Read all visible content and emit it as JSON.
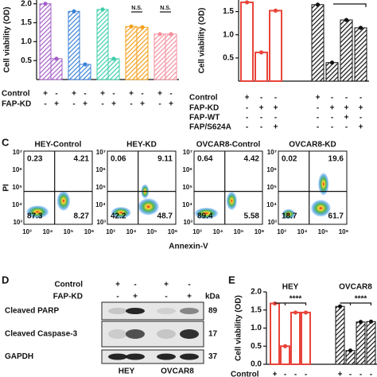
{
  "panels": [
    "C",
    "D",
    "E"
  ],
  "chart_data": [
    {
      "type": "bar",
      "y_label": "Cell viability (OD)",
      "ylim": [
        0,
        2.1
      ],
      "yticks": [
        0.5,
        {
          "value": 1,
          "label": "1.0"
        },
        1.5,
        {
          "value": 2,
          "label": "2.0"
        }
      ],
      "groups": [
        {
          "color": "#a45fc8",
          "hatch": true,
          "values": [
            2.0,
            0.55
          ]
        },
        {
          "color": "#3a82d8",
          "hatch": true,
          "values": [
            1.8,
            0.4
          ]
        },
        {
          "color": "#3fcfaa",
          "hatch": true,
          "values": [
            1.85,
            0.55
          ]
        },
        {
          "color": "#f5a01c",
          "hatch": true,
          "values": [
            1.4,
            1.38
          ]
        },
        {
          "color": "#f4909d",
          "hatch": true,
          "values": [
            1.2,
            1.2
          ]
        }
      ],
      "rows": [
        {
          "label": "Control",
          "signs": [
            "+",
            "-",
            "+",
            "-",
            "+",
            "-",
            "+",
            "-",
            "+",
            "-"
          ]
        },
        {
          "label": "FAP-KD",
          "signs": [
            "-",
            "+",
            "-",
            "+",
            "-",
            "+",
            "-",
            "+",
            "-",
            "+"
          ]
        }
      ],
      "annotations": [
        "N.S.",
        "N.S."
      ]
    },
    {
      "type": "bar",
      "y_label": "Cell viability (OD)",
      "ylim": [
        0,
        1.75
      ],
      "yticks": [
        0.5,
        {
          "value": 1,
          "label": "1.0"
        },
        1.5
      ],
      "groups": [
        {
          "color": "#e8443a",
          "hatch": false,
          "values": [
            1.7,
            0.62,
            1.52
          ]
        },
        {
          "color": "#111111",
          "hatch": true,
          "values": [
            1.65,
            0.4,
            1.32,
            1.15
          ]
        }
      ],
      "rows": [
        {
          "label": "Control",
          "signs": [
            "+",
            "-",
            "-",
            "+",
            "-",
            "-",
            "-"
          ]
        },
        {
          "label": "FAP-KD",
          "signs": [
            "-",
            "+",
            "+",
            "-",
            "+",
            "+",
            "+"
          ]
        },
        {
          "label": "FAP-WT",
          "signs": [
            "-",
            "-",
            "-",
            "-",
            "-",
            "+",
            "-"
          ]
        },
        {
          "label": "FAP/S624A",
          "signs": [
            "-",
            "-",
            "+",
            "-",
            "-",
            "-",
            "+"
          ]
        }
      ]
    },
    {
      "type": "bar",
      "y_label": "Cell viability (OD)",
      "ylim": [
        0,
        2
      ],
      "yticks": [
        {
          "value": 0,
          "label": "0.0"
        },
        0.5,
        {
          "value": 1,
          "label": "1.0"
        },
        1.5,
        {
          "value": 2,
          "label": "2.0"
        }
      ],
      "groups": [
        {
          "name": "HEY",
          "color": "#e8443a",
          "hatch": false,
          "values": [
            1.68,
            0.5,
            1.43,
            1.43
          ]
        },
        {
          "name": "OVCAR8",
          "color": "#111111",
          "hatch": true,
          "values": [
            1.6,
            0.38,
            1.17,
            1.18
          ]
        }
      ],
      "rows": [
        {
          "label": "Control",
          "signs": [
            "+",
            "-",
            "-",
            "-",
            "+",
            "-",
            "-",
            "-"
          ]
        }
      ],
      "annotations": [
        "****",
        "****"
      ]
    }
  ],
  "flow": {
    "y_label": "PI",
    "x_label": "Annexin-V",
    "xticks": [
      "10³",
      "10⁴",
      "10⁵",
      "10⁶"
    ],
    "yticks": [
      "10⁷",
      "10⁶",
      "10⁵",
      "10⁴",
      "10³"
    ],
    "plots": [
      {
        "title": "HEY-Control",
        "quadrants": [
          0.23,
          4.21,
          87.3,
          8.27
        ]
      },
      {
        "title": "HEY-KD",
        "quadrants": [
          0.06,
          9.11,
          42.2,
          48.7
        ]
      },
      {
        "title": "OVCAR8-Control",
        "quadrants": [
          0.64,
          4.42,
          89.4,
          5.58
        ]
      },
      {
        "title": "OVCAR8-KD",
        "quadrants": [
          0.02,
          19.6,
          18.7,
          61.7
        ]
      }
    ]
  },
  "blot": {
    "rows": [
      {
        "label": "Control",
        "signs": [
          "+",
          "-",
          "+",
          "-"
        ]
      },
      {
        "label": "FAP-KD",
        "signs": [
          "-",
          "+",
          "-",
          "+"
        ]
      }
    ],
    "unit": "kDa",
    "bands": [
      {
        "label": "Cleaved PARP",
        "kda": 89
      },
      {
        "label": "Cleaved Caspase-3",
        "kda": 17
      },
      {
        "label": "GAPDH",
        "kda": 37
      }
    ],
    "cell_lines": [
      "HEY",
      "OVCAR8"
    ]
  }
}
